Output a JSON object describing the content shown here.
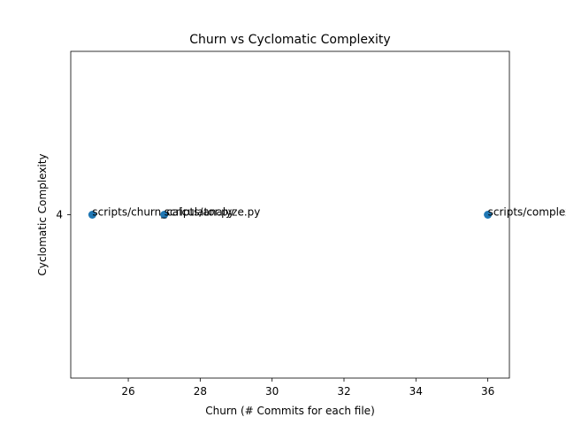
{
  "chart_data": {
    "type": "scatter",
    "title": "Churn vs Cyclomatic Complexity",
    "xlabel": "Churn (# Commits for each file)",
    "ylabel": "Cyclomatic Complexity",
    "xlim": [
      24.4,
      36.6
    ],
    "ylim": [
      3.95,
      4.05
    ],
    "xticks": [
      26,
      28,
      30,
      32,
      34,
      36
    ],
    "yticks": [
      4
    ],
    "grid": false,
    "points": [
      {
        "x": 25,
        "y": 4,
        "label": "scripts/churn_calculator.py"
      },
      {
        "x": 27,
        "y": 4,
        "label": "scripts/analyze.py"
      },
      {
        "x": 36,
        "y": 4,
        "label": "scripts/complexity.py"
      }
    ],
    "colors": {
      "marker": "#1f77b4",
      "axes": "#000000"
    }
  }
}
